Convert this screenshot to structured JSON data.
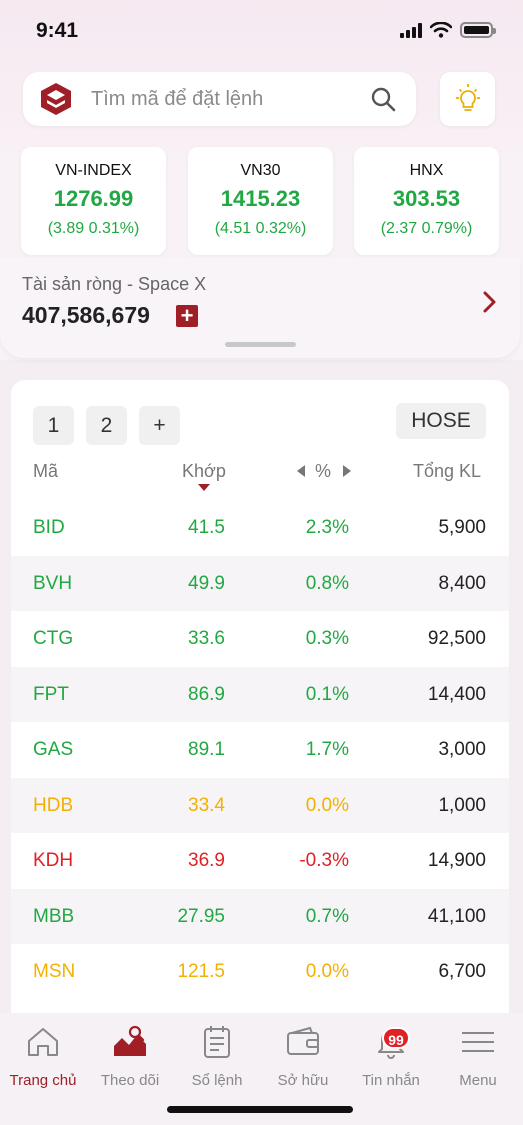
{
  "status": {
    "time": "9:41"
  },
  "search": {
    "placeholder": "Tìm mã để đặt lệnh"
  },
  "indices": [
    {
      "name": "VN-INDEX",
      "value": "1276.99",
      "change": "(3.89  0.31%)"
    },
    {
      "name": "VN30",
      "value": "1415.23",
      "change": "(4.51  0.32%)"
    },
    {
      "name": "HNX",
      "value": "303.53",
      "change": "(2.37  0.79%)"
    }
  ],
  "assets": {
    "label": "Tài sản ròng - Space X",
    "value": "407,586,679"
  },
  "watchlist": {
    "tabs": [
      "1",
      "2",
      "+"
    ],
    "exchange": "HOSE",
    "headers": {
      "symbol": "Mã",
      "price": "Khớp",
      "percent": "%",
      "volume": "Tổng KL"
    },
    "rows": [
      {
        "symbol": "BID",
        "price": "41.5",
        "pct": "2.3%",
        "volume": "5,900",
        "status": "up"
      },
      {
        "symbol": "BVH",
        "price": "49.9",
        "pct": "0.8%",
        "volume": "8,400",
        "status": "up"
      },
      {
        "symbol": "CTG",
        "price": "33.6",
        "pct": "0.3%",
        "volume": "92,500",
        "status": "up"
      },
      {
        "symbol": "FPT",
        "price": "86.9",
        "pct": "0.1%",
        "volume": "14,400",
        "status": "up"
      },
      {
        "symbol": "GAS",
        "price": "89.1",
        "pct": "1.7%",
        "volume": "3,000",
        "status": "up"
      },
      {
        "symbol": "HDB",
        "price": "33.4",
        "pct": "0.0%",
        "volume": "1,000",
        "status": "ref"
      },
      {
        "symbol": "KDH",
        "price": "36.9",
        "pct": "-0.3%",
        "volume": "14,900",
        "status": "down"
      },
      {
        "symbol": "MBB",
        "price": "27.95",
        "pct": "0.7%",
        "volume": "41,100",
        "status": "up"
      },
      {
        "symbol": "MSN",
        "price": "121.5",
        "pct": "0.0%",
        "volume": "6,700",
        "status": "ref"
      }
    ]
  },
  "nav": {
    "items": [
      {
        "label": "Trang chủ",
        "icon": "home-icon"
      },
      {
        "label": "Theo dõi",
        "icon": "chart-icon"
      },
      {
        "label": "Sổ lệnh",
        "icon": "order-book-icon"
      },
      {
        "label": "Sở hữu",
        "icon": "wallet-icon"
      },
      {
        "label": "Tin nhắn",
        "icon": "bell-icon"
      },
      {
        "label": "Menu",
        "icon": "menu-icon"
      }
    ],
    "badge": "99"
  },
  "colors": {
    "up": "#22a843",
    "ref": "#f2b100",
    "down": "#e01f26",
    "brand": "#a01e25"
  }
}
